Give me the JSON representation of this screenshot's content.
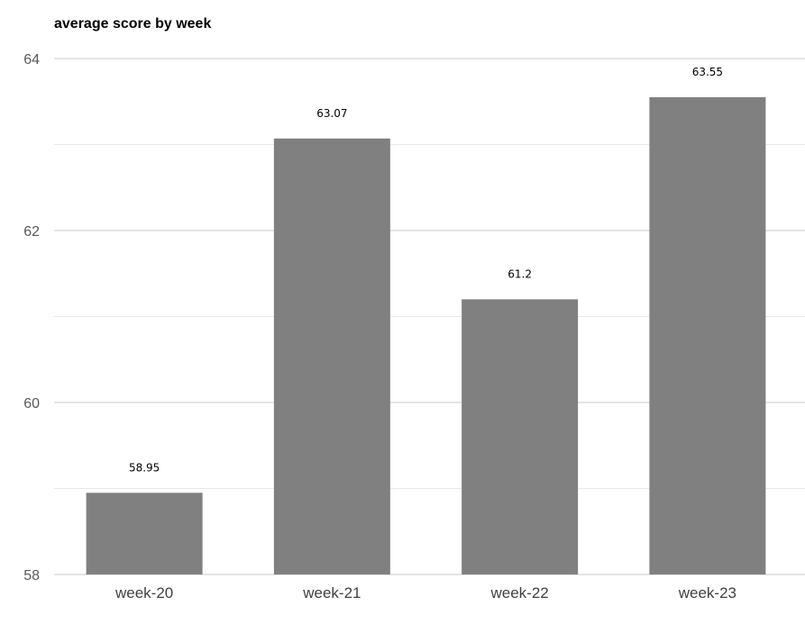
{
  "chart_data": {
    "type": "bar",
    "title": "average score by week",
    "categories": [
      "week-20",
      "week-21",
      "week-22",
      "week-23"
    ],
    "values": [
      58.95,
      63.07,
      61.2,
      63.55
    ],
    "data_labels": [
      "58.95",
      "63.07",
      "61.2",
      "63.55"
    ],
    "ylim": [
      58,
      64
    ],
    "yticks": [
      "58",
      "60",
      "62",
      "64"
    ],
    "ytick_values": [
      58,
      60,
      62,
      64
    ],
    "minor_gridlines": [
      59,
      61,
      63
    ],
    "grid": true,
    "legend": "none",
    "bar_color": "#808080",
    "xlabel": "",
    "ylabel": ""
  }
}
